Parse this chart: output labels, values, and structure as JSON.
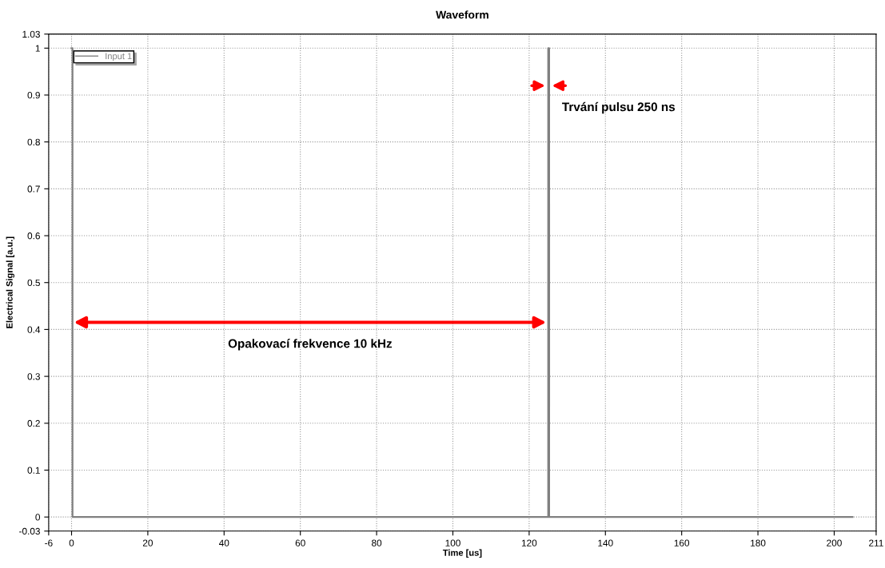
{
  "chart_data": {
    "type": "line",
    "title": "Waveform",
    "xlabel": "Time [us]",
    "ylabel": "Electrical Signal [a.u.]",
    "x": [
      0,
      0.25,
      0.25,
      125,
      125,
      125.25,
      125.25,
      204.8
    ],
    "series": [
      {
        "name": "Input 1",
        "color": "#808080",
        "values": [
          1,
          1,
          0,
          0,
          1,
          1,
          0,
          0
        ]
      }
    ],
    "xlim": [
      -6,
      211
    ],
    "xticks": [
      -6,
      0,
      20,
      40,
      60,
      80,
      100,
      120,
      140,
      160,
      180,
      200,
      211
    ],
    "ylim": [
      -0.03,
      1.03
    ],
    "yticks": [
      -0.03,
      0,
      0.1,
      0.2,
      0.3,
      0.4,
      0.5,
      0.6,
      0.7,
      0.8,
      0.9,
      1,
      1.03
    ],
    "grid": true,
    "legend": "top left",
    "marker": "none",
    "line_style": "solid",
    "annotations": [
      {
        "text": "Trvání pulsu 250 ns",
        "x": 125.1,
        "y": 0.92
      },
      "Opakovací frekvence 10 kHz"
    ]
  }
}
